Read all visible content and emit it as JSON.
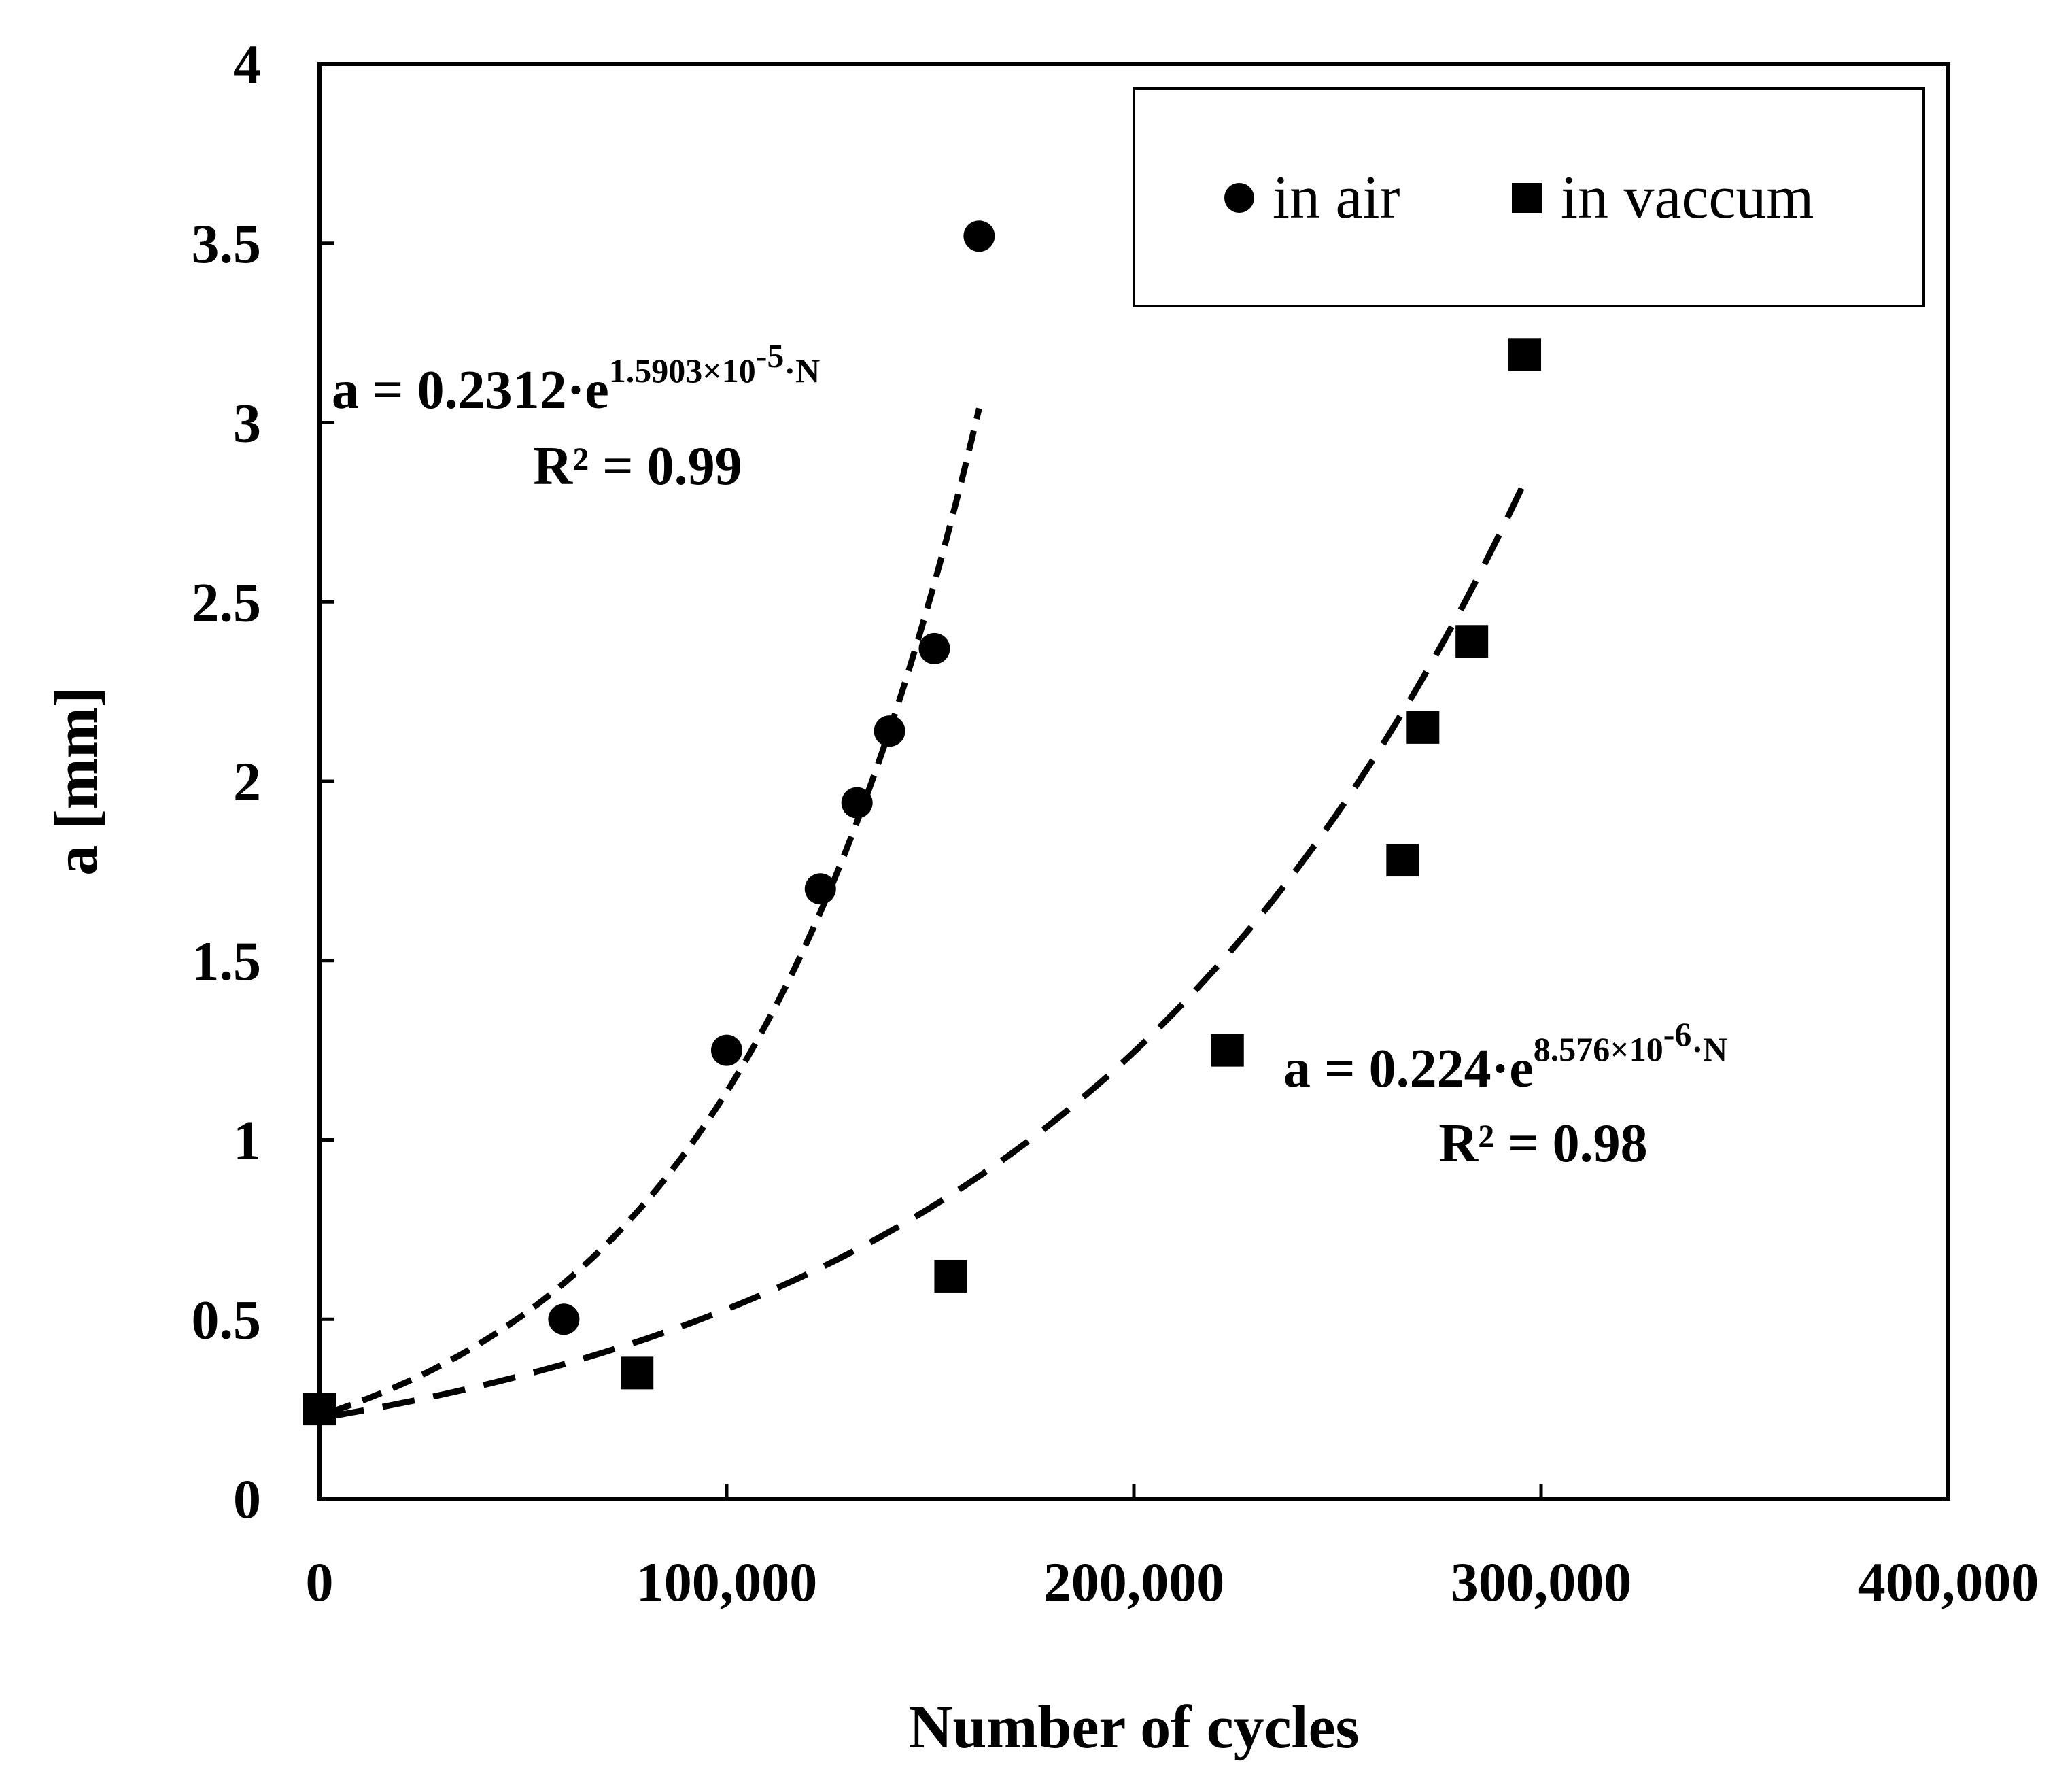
{
  "chart_data": {
    "type": "scatter",
    "title": "",
    "xlabel": "Number of cycles",
    "ylabel": "a [mm]",
    "xlim": [
      0,
      400000
    ],
    "ylim": [
      0,
      4
    ],
    "x_ticks": [
      0,
      100000,
      200000,
      300000,
      400000
    ],
    "x_tick_labels": [
      "0",
      "100,000",
      "200,000",
      "300,000",
      "400,000"
    ],
    "y_ticks": [
      0,
      0.5,
      1,
      1.5,
      2,
      2.5,
      3,
      3.5,
      4
    ],
    "y_tick_labels": [
      "0",
      "0.5",
      "1",
      "1.5",
      "2",
      "2.5",
      "3",
      "3.5",
      "4"
    ],
    "grid": false,
    "legend_position": "top-right",
    "series": [
      {
        "name": "in air",
        "marker": "circle",
        "points": [
          {
            "x": 0,
            "y": 0.25
          },
          {
            "x": 60000,
            "y": 0.5
          },
          {
            "x": 100000,
            "y": 1.25
          },
          {
            "x": 123000,
            "y": 1.7
          },
          {
            "x": 132000,
            "y": 1.94
          },
          {
            "x": 140000,
            "y": 2.14
          },
          {
            "x": 151000,
            "y": 2.37
          },
          {
            "x": 162000,
            "y": 3.52
          }
        ],
        "fit": {
          "type": "exponential",
          "a": 0.2312,
          "b": 1.5903e-05,
          "x_range": [
            3000,
            162000
          ],
          "equation_main": "a = 0.2312·e",
          "equation_exponent": "1.5903×10",
          "equation_exponent_power": "-5",
          "equation_exponent_tail": "·N",
          "r2_text": "R² = 0.99"
        }
      },
      {
        "name": "in vaccum",
        "marker": "square",
        "points": [
          {
            "x": 0,
            "y": 0.25
          },
          {
            "x": 78000,
            "y": 0.35
          },
          {
            "x": 155000,
            "y": 0.62
          },
          {
            "x": 223000,
            "y": 1.25
          },
          {
            "x": 266000,
            "y": 1.78
          },
          {
            "x": 271000,
            "y": 2.15
          },
          {
            "x": 283000,
            "y": 2.39
          },
          {
            "x": 296000,
            "y": 3.19
          }
        ],
        "fit": {
          "type": "exponential",
          "a": 0.224,
          "b": 8.576e-06,
          "x_range": [
            3000,
            296000
          ],
          "equation_main": "a = 0.224·e",
          "equation_exponent": "8.576×10",
          "equation_exponent_power": "-6",
          "equation_exponent_tail": "·N",
          "r2_text": "R² = 0.98"
        }
      }
    ]
  }
}
